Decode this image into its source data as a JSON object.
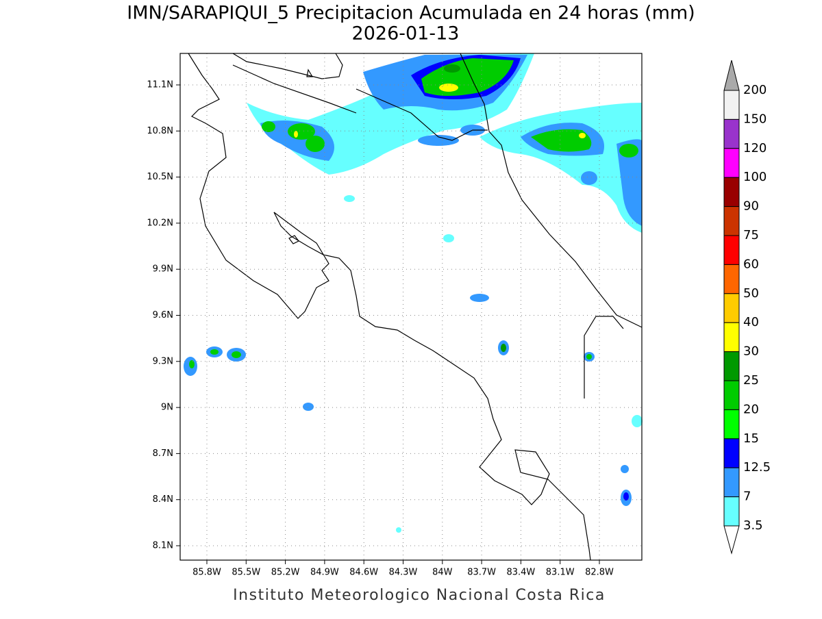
{
  "header": {
    "title": "IMN/SARAPIQUI_5 Precipitacion Acumulada en 24 horas (mm)",
    "subtitle": "2026-01-13"
  },
  "map": {
    "lat_labels": [
      "11.1N",
      "10.8N",
      "10.5N",
      "10.2N",
      "9.9N",
      "9.6N",
      "9.3N",
      "9N",
      "8.7N",
      "8.4N",
      "8.1N"
    ],
    "lon_labels": [
      "85.8W",
      "85.5W",
      "85.2W",
      "84.9W",
      "84.6W",
      "84.3W",
      "84W",
      "83.7W",
      "83.4W",
      "83.1W",
      "82.8W"
    ]
  },
  "colorbar": {
    "labels": [
      "200",
      "150",
      "120",
      "100",
      "90",
      "75",
      "60",
      "50",
      "40",
      "30",
      "25",
      "20",
      "15",
      "12.5",
      "7",
      "3.5"
    ],
    "colors": [
      "#f2f2f2",
      "#9933cc",
      "#ff00ff",
      "#990000",
      "#cc3300",
      "#ff0000",
      "#ff6600",
      "#ffcc00",
      "#ffff00",
      "#009900",
      "#00cc00",
      "#00ff00",
      "#0000ff",
      "#3399ff",
      "#66ffff"
    ],
    "over_color": "#aaaaaa",
    "under_color": "#ffffff"
  },
  "footer": "Instituto Meteorologico Nacional Costa Rica"
}
